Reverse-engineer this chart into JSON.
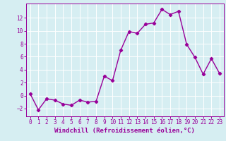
{
  "x": [
    0,
    1,
    2,
    3,
    4,
    5,
    6,
    7,
    8,
    9,
    10,
    11,
    12,
    13,
    14,
    15,
    16,
    17,
    18,
    19,
    20,
    21,
    22,
    23
  ],
  "y": [
    0.3,
    -2.2,
    -0.5,
    -0.7,
    -1.3,
    -1.5,
    -0.7,
    -1.0,
    -0.9,
    3.0,
    2.3,
    7.0,
    9.9,
    9.6,
    11.0,
    11.2,
    13.3,
    12.5,
    13.0,
    7.9,
    5.9,
    3.3,
    5.7,
    3.4
  ],
  "line_color": "#990099",
  "marker": "D",
  "marker_size": 2.2,
  "line_width": 1.0,
  "bg_color": "#d6eef2",
  "grid_color": "#ffffff",
  "xlabel": "Windchill (Refroidissement éolien,°C)",
  "xlabel_fontsize": 6.5,
  "tick_color": "#990099",
  "tick_fontsize": 5.5,
  "yticks": [
    -2,
    0,
    2,
    4,
    6,
    8,
    10,
    12
  ],
  "xticks": [
    0,
    1,
    2,
    3,
    4,
    5,
    6,
    7,
    8,
    9,
    10,
    11,
    12,
    13,
    14,
    15,
    16,
    17,
    18,
    19,
    20,
    21,
    22,
    23
  ],
  "ylim": [
    -3.2,
    14.2
  ],
  "xlim": [
    -0.5,
    23.5
  ]
}
